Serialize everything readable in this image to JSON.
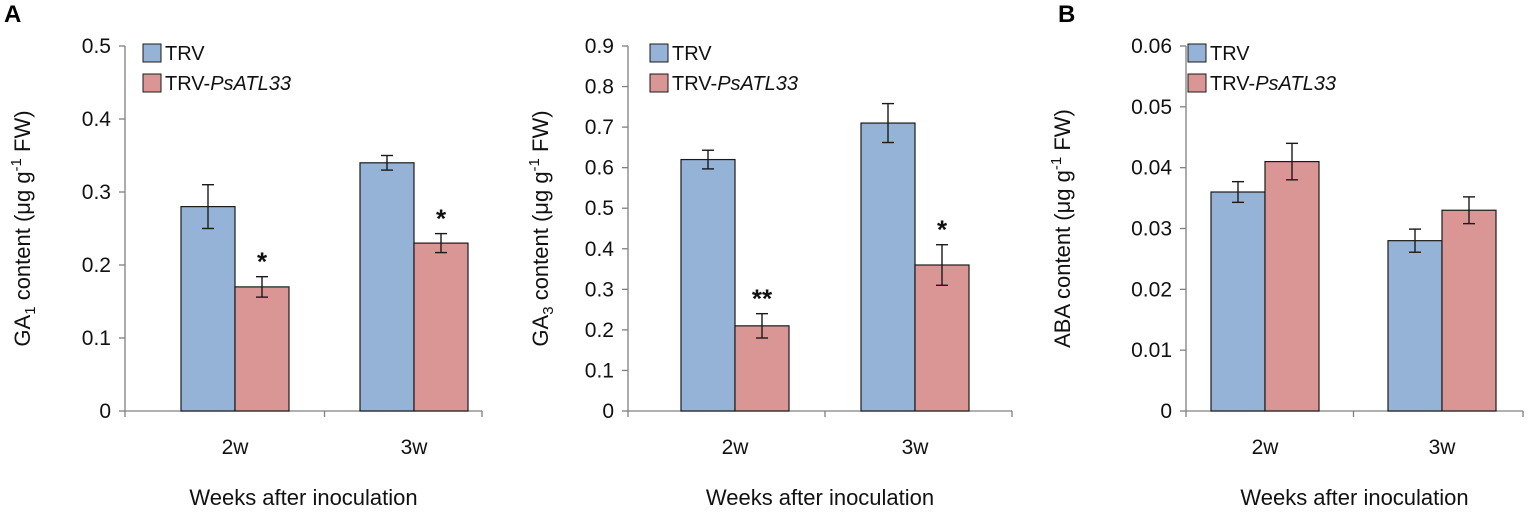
{
  "panel_letters": [
    "A",
    "B"
  ],
  "chart_data": [
    {
      "type": "bar",
      "id": "ga1",
      "ylabel_main": "GA",
      "ylabel_sub": "1",
      "ylabel_tail": " content (μg g",
      "ylabel_sup": "-1",
      "ylabel_end": " FW)",
      "xlabel": "Weeks after inoculation",
      "categories": [
        "2w",
        "3w"
      ],
      "ylim": [
        0,
        0.5
      ],
      "yticks": [
        0,
        0.1,
        0.2,
        0.3,
        0.4,
        0.5
      ],
      "ytick_labels": [
        "0",
        "0.1",
        "0.2",
        "0.3",
        "0.4",
        "0.5"
      ],
      "series": [
        {
          "name": "TRV",
          "name_plain": "TRV",
          "name_italic": "",
          "color": "#95b3d7",
          "values": [
            0.28,
            0.34
          ],
          "errors": [
            0.03,
            0.01
          ],
          "sig": [
            "",
            ""
          ]
        },
        {
          "name": "TRV-PsATL33",
          "name_plain": "TRV-",
          "name_italic": "PsATL33",
          "color": "#d99694",
          "values": [
            0.17,
            0.23
          ],
          "errors": [
            0.014,
            0.013
          ],
          "sig": [
            "*",
            "*"
          ]
        }
      ]
    },
    {
      "type": "bar",
      "id": "ga3",
      "ylabel_main": "GA",
      "ylabel_sub": "3",
      "ylabel_tail": " content (μg g",
      "ylabel_sup": "-1",
      "ylabel_end": " FW)",
      "xlabel": "Weeks after inoculation",
      "categories": [
        "2w",
        "3w"
      ],
      "ylim": [
        0,
        0.9
      ],
      "yticks": [
        0,
        0.1,
        0.2,
        0.3,
        0.4,
        0.5,
        0.6,
        0.7,
        0.8,
        0.9
      ],
      "ytick_labels": [
        "0",
        "0.1",
        "0.2",
        "0.3",
        "0.4",
        "0.5",
        "0.6",
        "0.7",
        "0.8",
        "0.9"
      ],
      "series": [
        {
          "name": "TRV",
          "name_plain": "TRV",
          "name_italic": "",
          "color": "#95b3d7",
          "values": [
            0.62,
            0.71
          ],
          "errors": [
            0.023,
            0.048
          ],
          "sig": [
            "",
            ""
          ]
        },
        {
          "name": "TRV-PsATL33",
          "name_plain": "TRV-",
          "name_italic": "PsATL33",
          "color": "#d99694",
          "values": [
            0.21,
            0.36
          ],
          "errors": [
            0.03,
            0.05
          ],
          "sig": [
            "**",
            "*"
          ]
        }
      ]
    },
    {
      "type": "bar",
      "id": "aba",
      "ylabel_main": "ABA content (μg g",
      "ylabel_sub": "",
      "ylabel_tail": "",
      "ylabel_sup": "-1",
      "ylabel_end": " FW)",
      "xlabel": "Weeks after inoculation",
      "categories": [
        "2w",
        "3w"
      ],
      "ylim": [
        0,
        0.06
      ],
      "yticks": [
        0,
        0.01,
        0.02,
        0.03,
        0.04,
        0.05,
        0.06
      ],
      "ytick_labels": [
        "0",
        "0.01",
        "0.02",
        "0.03",
        "0.04",
        "0.05",
        "0.06"
      ],
      "series": [
        {
          "name": "TRV",
          "name_plain": "TRV",
          "name_italic": "",
          "color": "#95b3d7",
          "values": [
            0.036,
            0.028
          ],
          "errors": [
            0.0017,
            0.0019
          ],
          "sig": [
            "",
            ""
          ]
        },
        {
          "name": "TRV-PsATL33",
          "name_plain": "TRV-",
          "name_italic": "PsATL33",
          "color": "#d99694",
          "values": [
            0.041,
            0.033
          ],
          "errors": [
            0.003,
            0.0022
          ],
          "sig": [
            "",
            ""
          ]
        }
      ]
    }
  ]
}
